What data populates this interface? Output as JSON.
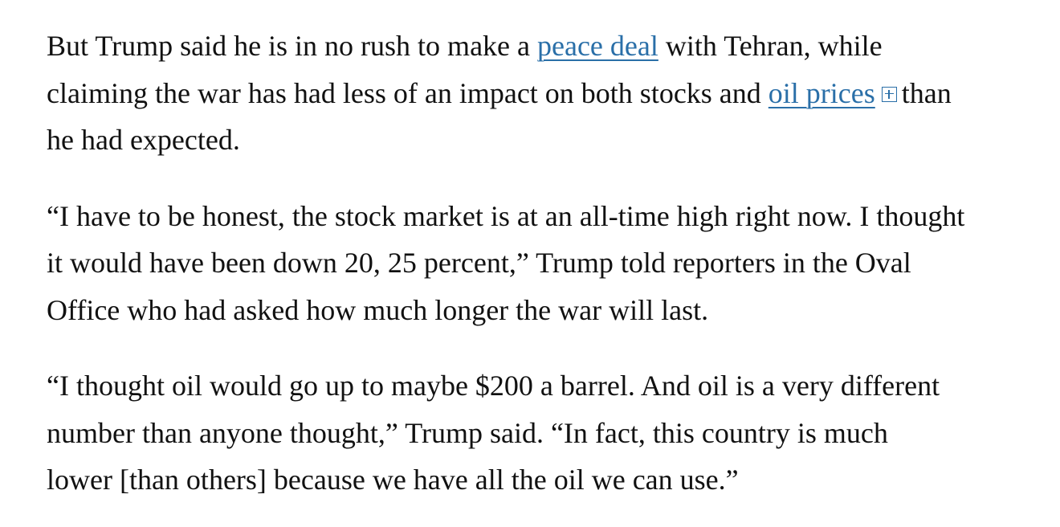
{
  "article": {
    "paragraphs": [
      {
        "l1_before": "But Trump said he is in no rush to make a ",
        "link1": "peace deal",
        "l1_after": " with Tehran, while",
        "l2_before": "claiming the war has had less of an impact on both stocks and ",
        "link2": "oil prices",
        "l2_after": "than",
        "l3": "he had expected."
      },
      {
        "l1": "“I have to be honest, the stock market is at an all-time high right now. I thought",
        "l2": "it would have been down 20, 25 percent,” Trump told reporters in the Oval",
        "l3": "Office who had asked how much longer the war will last."
      },
      {
        "l1": "“I thought oil would go up to maybe $200 a barrel. And oil is a very different",
        "l2": "number than anyone thought,” Trump said. “In fact, this country is much",
        "l3": "lower [than others] because we have all the oil we can use.”"
      }
    ],
    "link_color": "#2a6fa8",
    "text_color": "#111111",
    "expand_icon": "plus-box-icon"
  }
}
